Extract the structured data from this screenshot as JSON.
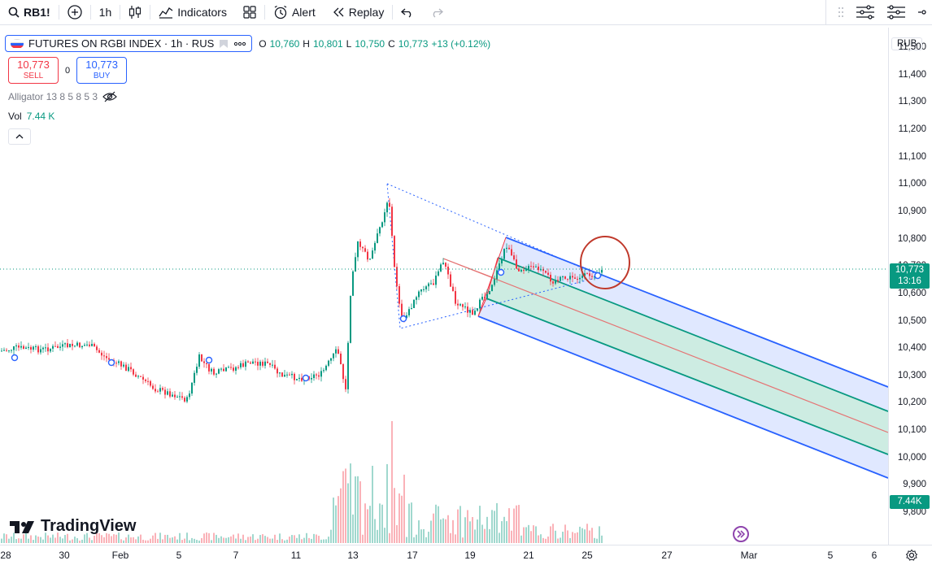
{
  "topbar": {
    "symbol": "RB1!",
    "interval": "1h",
    "indicators_label": "Indicators",
    "alert_label": "Alert",
    "replay_label": "Replay"
  },
  "legend": {
    "title": "FUTURES ON RGBI INDEX · 1h · RUS",
    "o_label": "O",
    "o_value": "10,760",
    "h_label": "H",
    "h_value": "10,801",
    "l_label": "L",
    "l_value": "10,750",
    "c_label": "C",
    "c_value": "10,773",
    "change": "+13 (+0.12%)"
  },
  "trade": {
    "sell_price": "10,773",
    "sell_label": "SELL",
    "spread": "0",
    "buy_price": "10,773",
    "buy_label": "BUY"
  },
  "indicators": {
    "alligator": "Alligator 13 8 5 8 5 3",
    "vol_label": "Vol",
    "vol_value": "7.44 K"
  },
  "yaxis": {
    "currency": "RUB",
    "ticks": [
      "11,500",
      "11,400",
      "11,300",
      "11,200",
      "11,100",
      "11,000",
      "10,900",
      "10,800",
      "10,700",
      "10,600",
      "10,500",
      "10,400",
      "10,300",
      "10,200",
      "10,100",
      "10,000",
      "9,900",
      "9,800"
    ],
    "last_price": "10,773",
    "countdown": "13:16",
    "vol_tag": "7.44K"
  },
  "xaxis": {
    "ticks": [
      "28",
      "30",
      "Feb",
      "5",
      "7",
      "11",
      "13",
      "17",
      "19",
      "21",
      "25",
      "27",
      "Mar",
      "5",
      "6"
    ]
  },
  "watermark": "TradingView",
  "colors": {
    "up": "#089981",
    "down": "#f23645",
    "accent": "#2962ff",
    "channel_fill": "#d6e0ff",
    "median_fill": "#cdeee0",
    "highlight_circle": "#c0392b"
  }
}
